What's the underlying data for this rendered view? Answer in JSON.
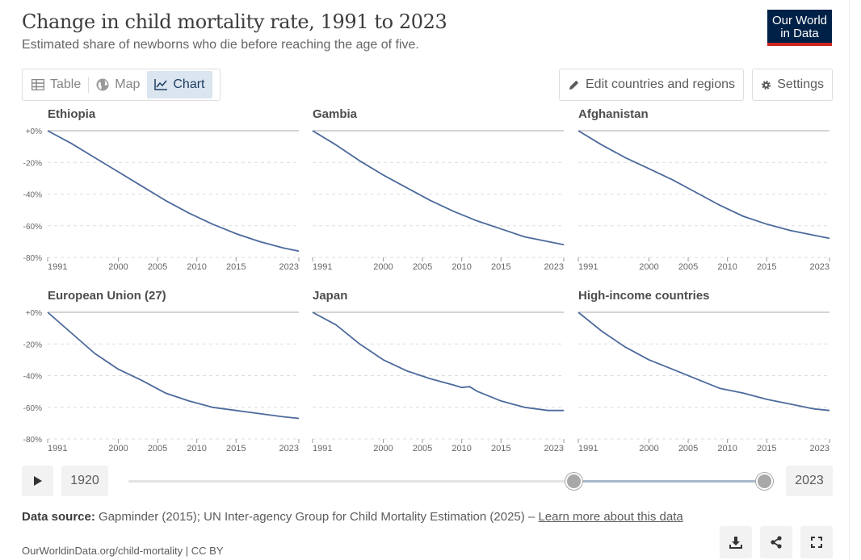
{
  "title": "Change in child mortality rate, 1991 to 2023",
  "subtitle": "Estimated share of newborns who die before reaching the age of five.",
  "logo": {
    "line1": "Our World",
    "line2": "in Data"
  },
  "tabs": [
    {
      "label": "Table",
      "icon": "table-icon"
    },
    {
      "label": "Map",
      "icon": "globe-icon"
    },
    {
      "label": "Chart",
      "icon": "line-chart-icon",
      "active": true
    }
  ],
  "buttons": {
    "edit": "Edit countries and regions",
    "settings": "Settings"
  },
  "chart_data": {
    "type": "line",
    "layout": "small-multiples",
    "y_ticks": [
      "+0%",
      "-20%",
      "-40%",
      "-60%",
      "-80%"
    ],
    "ylim": [
      -80,
      0
    ],
    "x_ticks": [
      "1991",
      "2000",
      "2005",
      "2010",
      "2015",
      "2023"
    ],
    "xlim": [
      1991,
      2023
    ],
    "grid": true,
    "panels": [
      {
        "name": "Ethiopia",
        "x": [
          1991,
          1994,
          1997,
          2000,
          2003,
          2006,
          2009,
          2012,
          2015,
          2018,
          2021,
          2023
        ],
        "y": [
          0,
          -8,
          -17,
          -26,
          -35,
          -44,
          -52,
          -59,
          -65,
          -70,
          -74,
          -76
        ]
      },
      {
        "name": "Gambia",
        "x": [
          1991,
          1994,
          1997,
          2000,
          2003,
          2006,
          2009,
          2012,
          2015,
          2018,
          2021,
          2023
        ],
        "y": [
          0,
          -9,
          -19,
          -28,
          -36,
          -44,
          -51,
          -57,
          -62,
          -67,
          -70,
          -72
        ]
      },
      {
        "name": "Afghanistan",
        "x": [
          1991,
          1994,
          1997,
          2000,
          2003,
          2006,
          2009,
          2012,
          2015,
          2018,
          2021,
          2023
        ],
        "y": [
          0,
          -9,
          -17,
          -24,
          -31,
          -39,
          -47,
          -54,
          -59,
          -63,
          -66,
          -68
        ]
      },
      {
        "name": "European Union (27)",
        "x": [
          1991,
          1994,
          1997,
          2000,
          2003,
          2006,
          2009,
          2012,
          2015,
          2018,
          2021,
          2023
        ],
        "y": [
          0,
          -13,
          -26,
          -36,
          -43,
          -51,
          -56,
          -60,
          -62,
          -64,
          -66,
          -67
        ]
      },
      {
        "name": "Japan",
        "x": [
          1991,
          1994,
          1997,
          2000,
          2003,
          2006,
          2009,
          2010,
          2011,
          2012,
          2015,
          2018,
          2021,
          2023
        ],
        "y": [
          0,
          -8,
          -20,
          -30,
          -37,
          -42,
          -46,
          -47.5,
          -47,
          -50,
          -56,
          -60,
          -62,
          -62
        ]
      },
      {
        "name": "High-income countries",
        "x": [
          1991,
          1994,
          1997,
          2000,
          2003,
          2006,
          2009,
          2012,
          2015,
          2018,
          2021,
          2023
        ],
        "y": [
          0,
          -12,
          -22,
          -30,
          -36,
          -42,
          -48,
          -51,
          -55,
          -58,
          -61,
          -62
        ]
      }
    ],
    "line_color": "#4c6a9c"
  },
  "timeline": {
    "start": "1920",
    "end": "2023",
    "range_start_fraction": 0.7,
    "range_end_fraction": 1.0
  },
  "source": {
    "label": "Data source:",
    "text": "Gapminder (2015); UN Inter-agency Group for Child Mortality Estimation (2025) –",
    "link": "Learn more about this data"
  },
  "url": "OurWorldinData.org/child-mortality | CC BY",
  "colors": {
    "accent": "#1d3d63",
    "brand": "#002147",
    "brand_red": "#ce261e",
    "line": "#4c6a9c"
  }
}
